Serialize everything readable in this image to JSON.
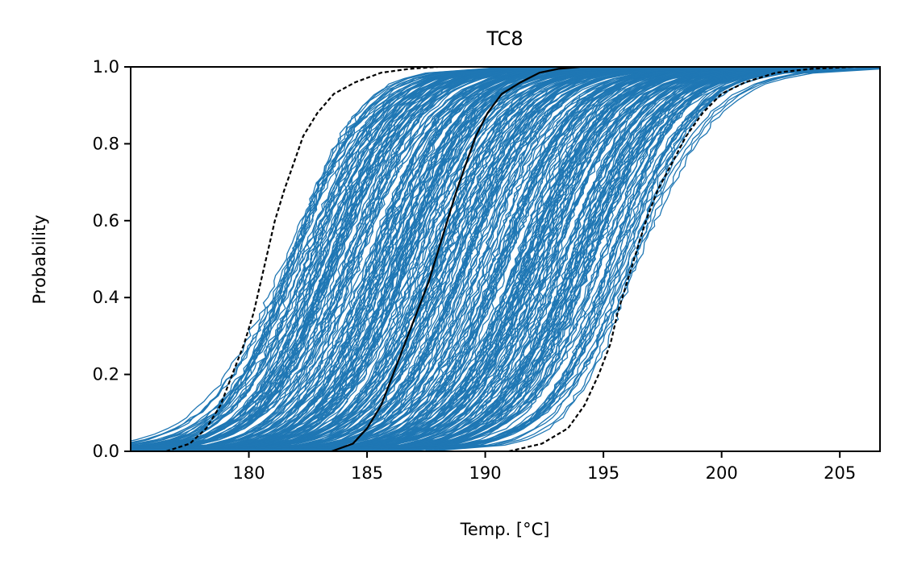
{
  "chart_data": {
    "type": "line",
    "title": "TC8",
    "xlabel": "Temp. [°C]",
    "ylabel": "Probability",
    "xlim": [
      175.0,
      206.7
    ],
    "ylim": [
      0.0,
      1.0
    ],
    "x_ticks": [
      180,
      185,
      190,
      195,
      200,
      205
    ],
    "y_ticks": [
      "0.0",
      "0.2",
      "0.4",
      "0.6",
      "0.8",
      "1.0"
    ],
    "grid": false,
    "colors": {
      "ensemble": "#1f77b4",
      "bounds": "#000000",
      "axes": "#000000",
      "background": "#ffffff"
    },
    "ensemble": {
      "description": "many empirical CDF curves (blue) between the lower and upper bound curves",
      "median_range": [
        181.5,
        196.5
      ],
      "count": 300
    },
    "series": [
      {
        "role": "lower-bound",
        "style": "black dashed",
        "x": [
          176.5,
          177.5,
          178.2,
          178.8,
          179.3,
          179.8,
          180.2,
          180.5,
          180.8,
          181.1,
          181.5,
          181.9,
          182.3,
          182.9,
          183.6,
          184.5,
          185.6,
          186.8,
          188.0
        ],
        "y": [
          0.0,
          0.02,
          0.06,
          0.12,
          0.2,
          0.28,
          0.36,
          0.44,
          0.52,
          0.6,
          0.68,
          0.75,
          0.82,
          0.88,
          0.93,
          0.96,
          0.985,
          0.995,
          1.0
        ]
      },
      {
        "role": "central",
        "style": "black solid",
        "x": [
          183.5,
          184.4,
          185.0,
          185.6,
          186.1,
          186.6,
          187.1,
          187.6,
          188.0,
          188.4,
          188.8,
          189.2,
          189.6,
          190.1,
          190.7,
          191.5,
          192.3,
          193.1,
          194.0
        ],
        "y": [
          0.0,
          0.02,
          0.06,
          0.12,
          0.2,
          0.28,
          0.36,
          0.44,
          0.52,
          0.6,
          0.68,
          0.75,
          0.82,
          0.88,
          0.93,
          0.96,
          0.985,
          0.995,
          1.0
        ]
      },
      {
        "role": "upper-bound",
        "style": "black dashed",
        "x": [
          191.0,
          192.4,
          193.5,
          194.2,
          194.8,
          195.3,
          195.6,
          196.0,
          196.4,
          196.8,
          197.3,
          197.9,
          198.5,
          199.2,
          200.0,
          201.0,
          202.3,
          203.8,
          205.5
        ],
        "y": [
          0.0,
          0.02,
          0.06,
          0.12,
          0.2,
          0.28,
          0.36,
          0.44,
          0.52,
          0.6,
          0.68,
          0.75,
          0.82,
          0.88,
          0.93,
          0.96,
          0.985,
          0.995,
          1.0
        ]
      }
    ]
  }
}
